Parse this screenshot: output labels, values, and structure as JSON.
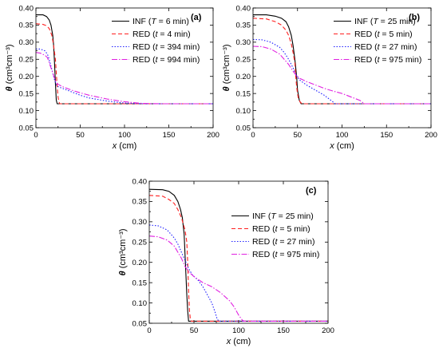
{
  "chart_data": [
    {
      "id": "a",
      "type": "line",
      "panel_label": "(a)",
      "xlabel": "x (cm)",
      "ylabel": "θ (cm³cm⁻³)",
      "xlim": [
        0,
        200
      ],
      "ylim": [
        0.05,
        0.4
      ],
      "xticks": [
        0,
        50,
        100,
        150,
        200
      ],
      "yticks": [
        0.05,
        0.1,
        0.15,
        0.2,
        0.25,
        0.3,
        0.35,
        0.4
      ],
      "legend_position": "top-right",
      "series": [
        {
          "name": "INF (T = 6 min)",
          "label_parts": [
            "INF (",
            "T",
            " = 6 min)"
          ],
          "color": "#000000",
          "dash": "solid",
          "x": [
            0,
            8,
            12,
            15,
            17,
            19,
            20,
            21,
            22,
            23,
            24,
            25,
            200
          ],
          "y": [
            0.38,
            0.38,
            0.375,
            0.365,
            0.35,
            0.32,
            0.29,
            0.24,
            0.18,
            0.13,
            0.12,
            0.12,
            0.12
          ]
        },
        {
          "name": "RED (t = 4 min)",
          "label_parts": [
            "RED (",
            "t",
            " = 4 min)"
          ],
          "color": "#ff2020",
          "dash": "5,3",
          "x": [
            0,
            8,
            12,
            15,
            18,
            20,
            22,
            23,
            24,
            25,
            26,
            27,
            28,
            200
          ],
          "y": [
            0.354,
            0.352,
            0.348,
            0.34,
            0.32,
            0.29,
            0.25,
            0.21,
            0.17,
            0.14,
            0.125,
            0.12,
            0.12,
            0.12
          ]
        },
        {
          "name": "RED (t = 394 min)",
          "label_parts": [
            "RED (",
            "t",
            " = 394 min)"
          ],
          "color": "#2020ff",
          "dash": "1.5,2",
          "x": [
            0,
            5,
            10,
            13,
            15,
            17,
            19,
            21,
            23,
            25,
            30,
            40,
            50,
            60,
            80,
            100,
            120,
            130,
            200
          ],
          "y": [
            0.28,
            0.28,
            0.275,
            0.265,
            0.25,
            0.23,
            0.21,
            0.19,
            0.175,
            0.17,
            0.165,
            0.155,
            0.145,
            0.137,
            0.128,
            0.122,
            0.12,
            0.12,
            0.12
          ]
        },
        {
          "name": "RED (t = 994 min)",
          "label_parts": [
            "RED (",
            "t",
            " = 994 min)"
          ],
          "color": "#e020e0",
          "dash": "7,2,1.5,2",
          "x": [
            0,
            5,
            10,
            13,
            15,
            17,
            19,
            21,
            23,
            25,
            30,
            40,
            50,
            60,
            80,
            100,
            120,
            140,
            160,
            200
          ],
          "y": [
            0.27,
            0.268,
            0.262,
            0.255,
            0.24,
            0.225,
            0.21,
            0.195,
            0.182,
            0.177,
            0.17,
            0.16,
            0.152,
            0.145,
            0.134,
            0.126,
            0.121,
            0.12,
            0.12,
            0.12
          ]
        }
      ]
    },
    {
      "id": "b",
      "type": "line",
      "panel_label": "(b)",
      "xlabel": "x (cm)",
      "ylabel": "θ (cm³cm⁻³)",
      "xlim": [
        0,
        200
      ],
      "ylim": [
        0.05,
        0.4
      ],
      "xticks": [
        0,
        50,
        100,
        150,
        200
      ],
      "yticks": [
        0.05,
        0.1,
        0.15,
        0.2,
        0.25,
        0.3,
        0.35,
        0.4
      ],
      "legend_position": "top-right",
      "series": [
        {
          "name": "INF (T = 25 min)",
          "label_parts": [
            "INF (",
            "T",
            " = 25 min)"
          ],
          "color": "#000000",
          "dash": "solid",
          "x": [
            0,
            15,
            25,
            32,
            37,
            40,
            43,
            45,
            47,
            49,
            50,
            52,
            54,
            56,
            200
          ],
          "y": [
            0.38,
            0.38,
            0.376,
            0.37,
            0.36,
            0.345,
            0.32,
            0.29,
            0.25,
            0.2,
            0.16,
            0.13,
            0.12,
            0.12,
            0.12
          ]
        },
        {
          "name": "RED (t = 5 min)",
          "label_parts": [
            "RED (",
            "t",
            " = 5 min)"
          ],
          "color": "#ff2020",
          "dash": "5,3",
          "x": [
            0,
            15,
            25,
            32,
            37,
            40,
            43,
            45,
            47,
            48,
            49,
            50,
            51,
            53,
            55,
            200
          ],
          "y": [
            0.37,
            0.368,
            0.36,
            0.35,
            0.335,
            0.32,
            0.295,
            0.27,
            0.24,
            0.2,
            0.17,
            0.15,
            0.135,
            0.125,
            0.12,
            0.12
          ]
        },
        {
          "name": "RED (t = 27 min)",
          "label_parts": [
            "RED (",
            "t",
            " = 27 min)"
          ],
          "color": "#2020ff",
          "dash": "1.5,2",
          "x": [
            0,
            10,
            20,
            30,
            35,
            40,
            45,
            48,
            52,
            60,
            70,
            80,
            85,
            90,
            92,
            95,
            200
          ],
          "y": [
            0.308,
            0.307,
            0.3,
            0.285,
            0.27,
            0.25,
            0.225,
            0.205,
            0.19,
            0.175,
            0.16,
            0.145,
            0.135,
            0.125,
            0.12,
            0.12,
            0.12
          ]
        },
        {
          "name": "RED (t = 975 min)",
          "label_parts": [
            "RED (",
            "t",
            " = 975 min)"
          ],
          "color": "#e020e0",
          "dash": "7,2,1.5,2",
          "x": [
            0,
            10,
            20,
            30,
            35,
            40,
            45,
            48,
            52,
            60,
            70,
            80,
            90,
            100,
            110,
            120,
            125,
            130,
            200
          ],
          "y": [
            0.288,
            0.287,
            0.28,
            0.265,
            0.25,
            0.235,
            0.215,
            0.205,
            0.195,
            0.185,
            0.175,
            0.165,
            0.157,
            0.15,
            0.14,
            0.13,
            0.12,
            0.12,
            0.12
          ]
        }
      ]
    },
    {
      "id": "c",
      "type": "line",
      "panel_label": "(c)",
      "xlabel": "x (cm)",
      "ylabel": "θ (cm³cm⁻³)",
      "xlim": [
        0,
        200
      ],
      "ylim": [
        0.05,
        0.4
      ],
      "xticks": [
        0,
        50,
        100,
        150,
        200
      ],
      "yticks": [
        0.05,
        0.1,
        0.15,
        0.2,
        0.25,
        0.3,
        0.35,
        0.4
      ],
      "legend_position": "top-right",
      "series": [
        {
          "name": "INF (T = 25 min)",
          "label_parts": [
            "INF (",
            "T",
            " = 25 min)"
          ],
          "color": "#000000",
          "dash": "solid",
          "x": [
            0,
            15,
            22,
            28,
            32,
            35,
            37,
            39,
            40,
            41,
            42,
            43,
            44,
            45,
            200
          ],
          "y": [
            0.38,
            0.379,
            0.375,
            0.365,
            0.35,
            0.33,
            0.31,
            0.27,
            0.22,
            0.17,
            0.12,
            0.08,
            0.055,
            0.055,
            0.055
          ]
        },
        {
          "name": "RED (t = 5 min)",
          "label_parts": [
            "RED (",
            "t",
            " = 5 min)"
          ],
          "color": "#ff2020",
          "dash": "5,3",
          "x": [
            0,
            15,
            22,
            28,
            32,
            36,
            40,
            42,
            43,
            44,
            45,
            46,
            47,
            200
          ],
          "y": [
            0.365,
            0.363,
            0.355,
            0.345,
            0.33,
            0.31,
            0.28,
            0.25,
            0.2,
            0.13,
            0.08,
            0.06,
            0.055,
            0.055
          ]
        },
        {
          "name": "RED (t = 27 min)",
          "label_parts": [
            "RED (",
            "t",
            " = 27 min)"
          ],
          "color": "#2020ff",
          "dash": "1.5,2",
          "x": [
            0,
            10,
            20,
            28,
            32,
            36,
            40,
            44,
            48,
            55,
            60,
            65,
            70,
            74,
            76,
            78,
            200
          ],
          "y": [
            0.292,
            0.29,
            0.28,
            0.26,
            0.245,
            0.225,
            0.205,
            0.185,
            0.17,
            0.155,
            0.14,
            0.12,
            0.1,
            0.075,
            0.06,
            0.055,
            0.055
          ]
        },
        {
          "name": "RED (t = 975 min)",
          "label_parts": [
            "RED (",
            "t",
            " = 975 min)"
          ],
          "color": "#e020e0",
          "dash": "7,2,1.5,2",
          "x": [
            0,
            10,
            20,
            28,
            32,
            36,
            40,
            45,
            50,
            60,
            70,
            80,
            90,
            95,
            100,
            104,
            106,
            200
          ],
          "y": [
            0.265,
            0.263,
            0.255,
            0.24,
            0.225,
            0.21,
            0.19,
            0.175,
            0.165,
            0.15,
            0.14,
            0.125,
            0.105,
            0.09,
            0.07,
            0.058,
            0.055,
            0.055
          ]
        }
      ]
    }
  ]
}
